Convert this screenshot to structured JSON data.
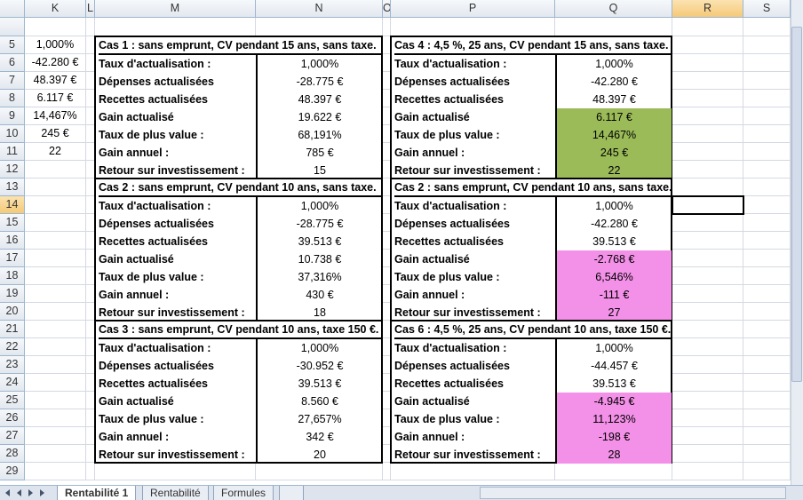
{
  "column_headers": [
    "K",
    "L",
    "M",
    "N",
    "O",
    "P",
    "Q",
    "R",
    "S"
  ],
  "row_numbers": [
    5,
    6,
    7,
    8,
    9,
    10,
    11,
    12,
    13,
    14,
    15,
    16,
    17,
    18,
    19,
    20,
    21,
    22,
    23,
    24,
    25,
    26,
    27,
    28,
    29
  ],
  "k_column": [
    "1,000%",
    "-42.280 €",
    "48.397 €",
    "6.117 €",
    "14,467%",
    "245 €",
    "22"
  ],
  "cases": [
    {
      "title": "Cas 1 : sans emprunt, CV pendant 15 ans, sans taxe.",
      "rows": [
        {
          "label": "Taux d'actualisation :",
          "value": "1,000%"
        },
        {
          "label": "Dépenses actualisées",
          "value": "-28.775 €"
        },
        {
          "label": "Recettes actualisées",
          "value": "48.397 €"
        },
        {
          "label": "Gain actualisé",
          "value": "19.622 €"
        },
        {
          "label": "Taux de plus value :",
          "value": "68,191%"
        },
        {
          "label": "Gain annuel :",
          "value": "785 €"
        },
        {
          "label": "Retour sur investissement :",
          "value": "15"
        }
      ]
    },
    {
      "title": "Cas 2 : sans emprunt, CV pendant 10 ans, sans taxe.",
      "rows": [
        {
          "label": "Taux d'actualisation :",
          "value": "1,000%"
        },
        {
          "label": "Dépenses actualisées",
          "value": "-28.775 €"
        },
        {
          "label": "Recettes actualisées",
          "value": "39.513 €"
        },
        {
          "label": "Gain actualisé",
          "value": "10.738 €"
        },
        {
          "label": "Taux de plus value :",
          "value": "37,316%"
        },
        {
          "label": "Gain annuel :",
          "value": "430 €"
        },
        {
          "label": "Retour sur investissement :",
          "value": "18"
        }
      ]
    },
    {
      "title": "Cas 3 : sans emprunt, CV pendant 10 ans, taxe 150 €.",
      "rows": [
        {
          "label": "Taux d'actualisation :",
          "value": "1,000%"
        },
        {
          "label": "Dépenses actualisées",
          "value": "-30.952 €"
        },
        {
          "label": "Recettes actualisées",
          "value": "39.513 €"
        },
        {
          "label": "Gain actualisé",
          "value": "8.560 €"
        },
        {
          "label": "Taux de plus value :",
          "value": "27,657%"
        },
        {
          "label": "Gain annuel :",
          "value": "342 €"
        },
        {
          "label": "Retour sur investissement :",
          "value": "20"
        }
      ]
    },
    {
      "title": "Cas 4 : 4,5 %, 25 ans, CV pendant 15 ans, sans taxe.",
      "rows": [
        {
          "label": "Taux d'actualisation :",
          "value": "1,000%"
        },
        {
          "label": "Dépenses actualisées",
          "value": "-42.280 €"
        },
        {
          "label": "Recettes actualisées",
          "value": "48.397 €"
        },
        {
          "label": "Gain actualisé",
          "value": "6.117 €"
        },
        {
          "label": "Taux de plus value :",
          "value": "14,467%"
        },
        {
          "label": "Gain annuel :",
          "value": "245 €"
        },
        {
          "label": "Retour sur investissement :",
          "value": "22"
        }
      ]
    },
    {
      "title": "Cas 2 : sans emprunt, CV pendant 10 ans, sans taxe.",
      "rows": [
        {
          "label": "Taux d'actualisation :",
          "value": "1,000%"
        },
        {
          "label": "Dépenses actualisées",
          "value": "-42.280 €"
        },
        {
          "label": "Recettes actualisées",
          "value": "39.513 €"
        },
        {
          "label": "Gain actualisé",
          "value": "-2.768 €"
        },
        {
          "label": "Taux de plus value :",
          "value": "6,546%"
        },
        {
          "label": "Gain annuel :",
          "value": "-111 €"
        },
        {
          "label": "Retour sur investissement :",
          "value": "27"
        }
      ]
    },
    {
      "title": "Cas 6 : 4,5 %, 25 ans, CV pendant 10 ans, taxe 150 €.",
      "rows": [
        {
          "label": "Taux d'actualisation :",
          "value": "1,000%"
        },
        {
          "label": "Dépenses actualisées",
          "value": "-44.457 €"
        },
        {
          "label": "Recettes actualisées",
          "value": "39.513 €"
        },
        {
          "label": "Gain actualisé",
          "value": "-4.945 €"
        },
        {
          "label": "Taux de plus value :",
          "value": "11,123%"
        },
        {
          "label": "Gain annuel :",
          "value": "-198 €"
        },
        {
          "label": "Retour sur investissement :",
          "value": "28"
        }
      ]
    }
  ],
  "sheet_tabs": [
    "Rentabilité 1",
    "Rentabilité",
    "Formules"
  ]
}
